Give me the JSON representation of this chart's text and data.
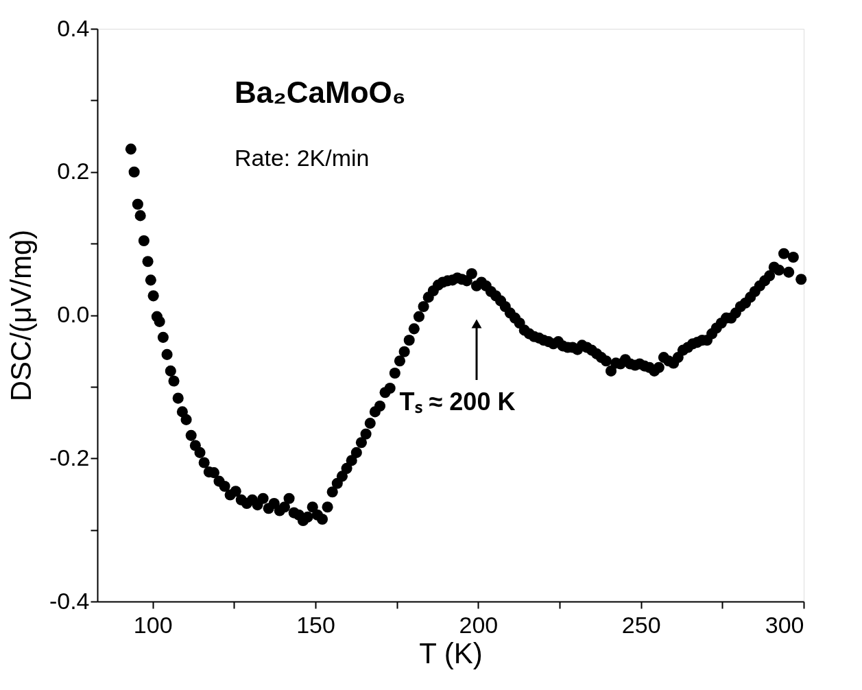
{
  "chart_data": {
    "type": "scatter",
    "xlabel": "T (K)",
    "ylabel": "DSC/(μV/mg)",
    "annotations": [
      "Ba₂CaMoO₆",
      "Rate: 2K/min",
      "Tₛ ≈ 200 K"
    ],
    "xlim": [
      83,
      300
    ],
    "ylim": [
      -0.4,
      0.4
    ],
    "xticks": [
      100,
      {
        "value": 125,
        "label": null
      },
      150,
      {
        "value": 175,
        "label": null
      },
      200,
      {
        "value": 225,
        "label": null
      },
      250,
      {
        "value": 275,
        "label": null
      },
      300
    ],
    "yticks": [
      -0.4,
      {
        "value": -0.3,
        "label": null
      },
      -0.2,
      {
        "value": -0.1,
        "label": null
      },
      {
        "value": 0,
        "label": "0.0"
      },
      {
        "value": 0.1,
        "label": null
      },
      0.2,
      {
        "value": 0.3,
        "label": null
      },
      0.4
    ],
    "grid": false,
    "marker": "circle",
    "series": [
      {
        "color": "#000000",
        "x": [
          93.3,
          94.3,
          95.4,
          96.2,
          97.3,
          98.5,
          99.4,
          100.2,
          101.3,
          102.1,
          103.2,
          104.4,
          105.5,
          106.5,
          107.8,
          109.1,
          110.3,
          111.8,
          113.1,
          114.5,
          115.8,
          117.3,
          118.8,
          120.4,
          122.1,
          123.8,
          125.5,
          127.2,
          128.9,
          130.6,
          132.2,
          133.9,
          135.6,
          137.3,
          139.0,
          140.5,
          141.9,
          143.4,
          144.9,
          146.2,
          147.6,
          149.1,
          150.6,
          152.1,
          153.7,
          155.2,
          156.7,
          158.2,
          159.6,
          161.1,
          162.6,
          164.1,
          165.5,
          166.8,
          168.3,
          169.8,
          171.4,
          172.9,
          174.4,
          175.9,
          177.3,
          178.8,
          180.3,
          181.8,
          183.2,
          184.7,
          186.2,
          187.7,
          189.1,
          190.6,
          192.1,
          193.6,
          195.0,
          196.5,
          198.0,
          199.5,
          201.0,
          202.4,
          203.9,
          205.4,
          206.9,
          208.3,
          209.8,
          211.3,
          212.7,
          214.2,
          215.7,
          217.2,
          218.7,
          220.1,
          221.6,
          223.1,
          224.6,
          226.0,
          227.5,
          229.0,
          230.5,
          231.9,
          233.4,
          234.9,
          236.4,
          237.8,
          239.3,
          240.8,
          242.3,
          243.7,
          245.2,
          246.7,
          248.2,
          249.6,
          251.1,
          252.6,
          254.1,
          255.5,
          257.0,
          258.5,
          260.0,
          261.4,
          262.9,
          264.4,
          265.9,
          267.3,
          268.8,
          270.3,
          271.8,
          273.2,
          274.7,
          276.2,
          277.7,
          279.1,
          280.6,
          282.1,
          283.6,
          285.0,
          286.5,
          288.0,
          289.5,
          290.9,
          292.4,
          293.9,
          295.4,
          296.8,
          299.2
        ],
        "values": [
          0.232,
          0.2,
          0.155,
          0.139,
          0.104,
          0.075,
          0.049,
          0.027,
          -0.002,
          -0.009,
          -0.031,
          -0.055,
          -0.078,
          -0.092,
          -0.116,
          -0.135,
          -0.146,
          -0.168,
          -0.182,
          -0.192,
          -0.206,
          -0.219,
          -0.22,
          -0.232,
          -0.239,
          -0.251,
          -0.246,
          -0.258,
          -0.263,
          -0.258,
          -0.265,
          -0.256,
          -0.27,
          -0.263,
          -0.273,
          -0.268,
          -0.256,
          -0.276,
          -0.279,
          -0.287,
          -0.282,
          -0.268,
          -0.279,
          -0.285,
          -0.268,
          -0.247,
          -0.235,
          -0.225,
          -0.214,
          -0.203,
          -0.192,
          -0.178,
          -0.166,
          -0.151,
          -0.135,
          -0.127,
          -0.108,
          -0.102,
          -0.081,
          -0.064,
          -0.051,
          -0.035,
          -0.019,
          -0.002,
          0.012,
          0.025,
          0.034,
          0.042,
          0.046,
          0.048,
          0.049,
          0.052,
          0.05,
          0.048,
          0.058,
          0.041,
          0.046,
          0.041,
          0.033,
          0.027,
          0.02,
          0.012,
          0.003,
          -0.004,
          -0.011,
          -0.021,
          -0.026,
          -0.03,
          -0.032,
          -0.035,
          -0.037,
          -0.04,
          -0.037,
          -0.043,
          -0.045,
          -0.045,
          -0.048,
          -0.042,
          -0.045,
          -0.049,
          -0.054,
          -0.059,
          -0.064,
          -0.078,
          -0.067,
          -0.068,
          -0.062,
          -0.068,
          -0.07,
          -0.068,
          -0.071,
          -0.073,
          -0.078,
          -0.073,
          -0.059,
          -0.064,
          -0.067,
          -0.059,
          -0.049,
          -0.045,
          -0.04,
          -0.038,
          -0.035,
          -0.035,
          -0.026,
          -0.018,
          -0.011,
          -0.004,
          -0.004,
          0.003,
          0.012,
          0.017,
          0.025,
          0.033,
          0.041,
          0.048,
          0.055,
          0.067,
          0.063,
          0.086,
          0.06,
          0.081,
          0.05
        ]
      }
    ]
  }
}
